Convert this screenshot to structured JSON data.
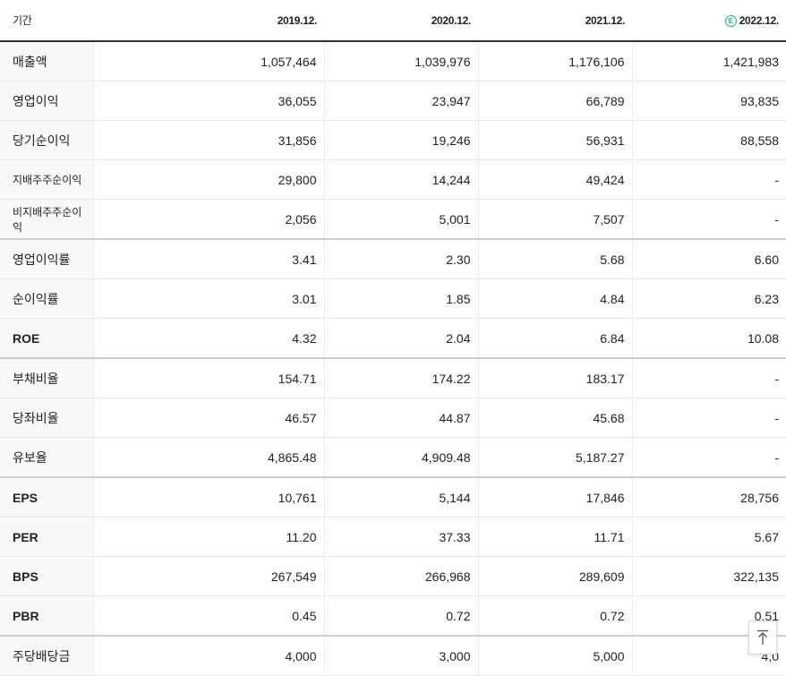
{
  "header": {
    "period_label": "기간",
    "years": [
      "2019.12.",
      "2020.12.",
      "2021.12.",
      "2022.12."
    ],
    "estimate_badge": "E"
  },
  "rows": [
    {
      "label": "매출액",
      "values": [
        "1,057,464",
        "1,039,976",
        "1,176,106",
        "1,421,983"
      ]
    },
    {
      "label": "영업이익",
      "values": [
        "36,055",
        "23,947",
        "66,789",
        "93,835"
      ]
    },
    {
      "label": "당기순이익",
      "values": [
        "31,856",
        "19,246",
        "56,931",
        "88,558"
      ]
    },
    {
      "label": "지배주주순이익",
      "values": [
        "29,800",
        "14,244",
        "49,424",
        "-"
      ]
    },
    {
      "label": "비지배주주순이익",
      "values": [
        "2,056",
        "5,001",
        "7,507",
        "-"
      ]
    },
    {
      "label": "영업이익률",
      "values": [
        "3.41",
        "2.30",
        "5.68",
        "6.60"
      ]
    },
    {
      "label": "순이익률",
      "values": [
        "3.01",
        "1.85",
        "4.84",
        "6.23"
      ]
    },
    {
      "label": "ROE",
      "values": [
        "4.32",
        "2.04",
        "6.84",
        "10.08"
      ]
    },
    {
      "label": "부채비율",
      "values": [
        "154.71",
        "174.22",
        "183.17",
        "-"
      ]
    },
    {
      "label": "당좌비율",
      "values": [
        "46.57",
        "44.87",
        "45.68",
        "-"
      ]
    },
    {
      "label": "유보율",
      "values": [
        "4,865.48",
        "4,909.48",
        "5,187.27",
        "-"
      ]
    },
    {
      "label": "EPS",
      "values": [
        "10,761",
        "5,144",
        "17,846",
        "28,756"
      ]
    },
    {
      "label": "PER",
      "values": [
        "11.20",
        "37.33",
        "11.71",
        "5.67"
      ]
    },
    {
      "label": "BPS",
      "values": [
        "267,549",
        "266,968",
        "289,609",
        "322,135"
      ]
    },
    {
      "label": "PBR",
      "values": [
        "0.45",
        "0.72",
        "0.72",
        "0.51"
      ]
    },
    {
      "label": "주당배당금",
      "values": [
        "4,000",
        "3,000",
        "5,000",
        "4,0"
      ]
    }
  ],
  "scroll_top_icon": "arrow-up-icon"
}
